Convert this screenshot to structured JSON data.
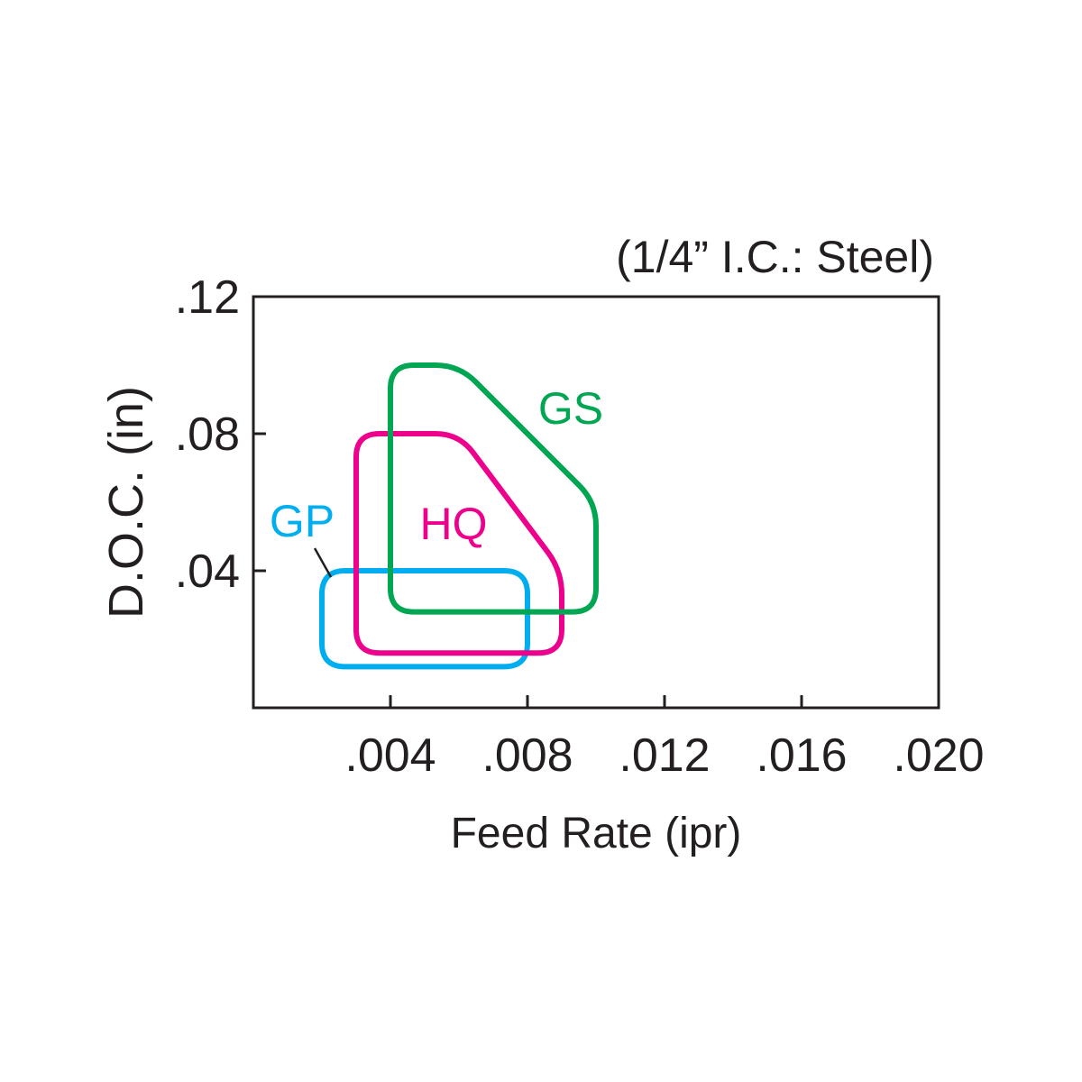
{
  "chart_data": {
    "type": "area",
    "title": "(1/4” I.C.: Steel)",
    "xlabel": "Feed Rate (ipr)",
    "ylabel": "D.O.C. (in)",
    "xlim": [
      0,
      0.02
    ],
    "ylim": [
      0,
      0.12
    ],
    "x_ticks": [
      {
        "value": 0.004,
        "label": ".004"
      },
      {
        "value": 0.008,
        "label": ".008"
      },
      {
        "value": 0.012,
        "label": ".012"
      },
      {
        "value": 0.016,
        "label": ".016"
      },
      {
        "value": 0.02,
        "label": ".020"
      }
    ],
    "y_ticks": [
      {
        "value": 0.04,
        "label": ".04"
      },
      {
        "value": 0.08,
        "label": ".08"
      },
      {
        "value": 0.12,
        "label": ".12"
      }
    ],
    "grid": false,
    "series": [
      {
        "name": "GP",
        "color": "#00aeef",
        "polygon": [
          [
            0.002,
            0.012
          ],
          [
            0.008,
            0.012
          ],
          [
            0.008,
            0.04
          ],
          [
            0.002,
            0.04
          ]
        ]
      },
      {
        "name": "HQ",
        "color": "#ec008c",
        "polygon": [
          [
            0.003,
            0.016
          ],
          [
            0.009,
            0.016
          ],
          [
            0.009,
            0.04
          ],
          [
            0.006,
            0.08
          ],
          [
            0.003,
            0.08
          ]
        ]
      },
      {
        "name": "GS",
        "color": "#00a651",
        "polygon": [
          [
            0.004,
            0.028
          ],
          [
            0.01,
            0.028
          ],
          [
            0.01,
            0.06
          ],
          [
            0.006,
            0.1
          ],
          [
            0.004,
            0.1
          ]
        ]
      }
    ]
  }
}
